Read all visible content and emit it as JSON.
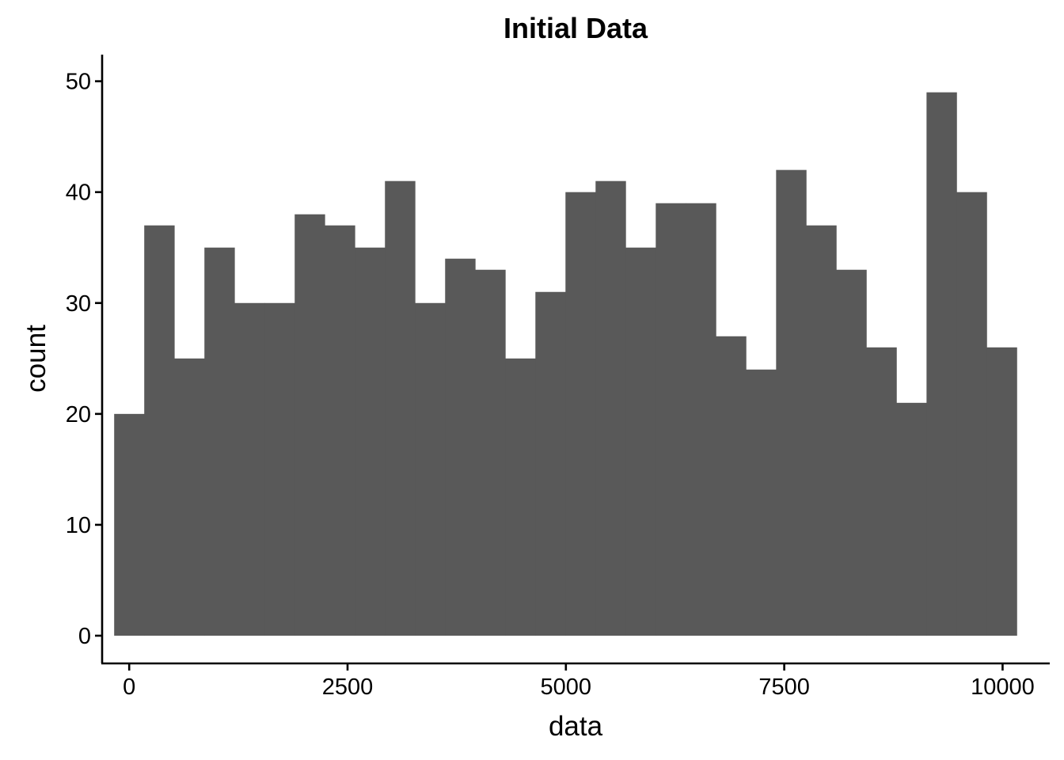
{
  "chart_data": {
    "type": "bar",
    "title": "Initial Data",
    "xlabel": "data",
    "ylabel": "count",
    "xlim": [
      -310,
      10540
    ],
    "ylim": [
      -2.5,
      52.4
    ],
    "xticks": [
      0,
      2500,
      5000,
      7500,
      10000
    ],
    "xtick_labels": [
      "0",
      "2500",
      "5000",
      "7500",
      "10000"
    ],
    "yticks": [
      0,
      10,
      20,
      30,
      40,
      50
    ],
    "ytick_labels": [
      "0",
      "10",
      "20",
      "30",
      "40",
      "50"
    ],
    "bin_width": 344.5,
    "bin_start": -172.25,
    "values": [
      20,
      37,
      25,
      35,
      30,
      30,
      38,
      37,
      35,
      41,
      30,
      34,
      33,
      25,
      31,
      40,
      41,
      35,
      39,
      39,
      27,
      24,
      42,
      37,
      33,
      26,
      21,
      49,
      40,
      26
    ],
    "bar_color": "#595959",
    "grid": false,
    "legend": "none"
  }
}
